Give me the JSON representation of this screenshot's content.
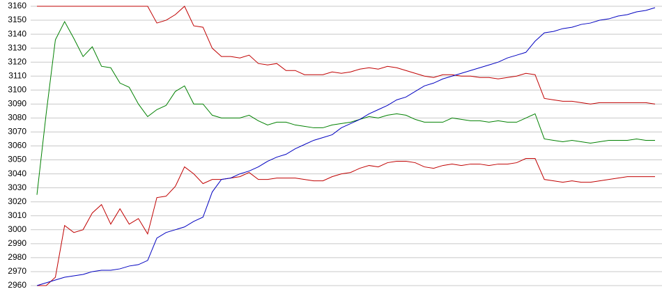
{
  "chart_data": {
    "type": "line",
    "categories": [
      null,
      null,
      null,
      null,
      null,
      null,
      null,
      null,
      null,
      null,
      null,
      null,
      null,
      null,
      null,
      null,
      null,
      null,
      null,
      null,
      null,
      null,
      null,
      null,
      null,
      null,
      null,
      null,
      null,
      null,
      null,
      null,
      null,
      null,
      null,
      null,
      null,
      null,
      null,
      null,
      null,
      null,
      null,
      null,
      null,
      null,
      null,
      null,
      null,
      null,
      null,
      null,
      null,
      null,
      null,
      null,
      null,
      null,
      null,
      null,
      null,
      null,
      null,
      null,
      null,
      null,
      null,
      null
    ],
    "series": [
      {
        "color": "#c00000",
        "values": [
          3160,
          3160,
          3160,
          3160,
          3160,
          3160,
          3160,
          3160,
          3160,
          3160,
          3160,
          3160,
          3160,
          3148,
          3150,
          3154,
          3160,
          3146,
          3145,
          3130,
          3124,
          3124,
          3123,
          3125,
          3119,
          3118,
          3119,
          3114,
          3114,
          3111,
          3111,
          3111,
          3113,
          3112,
          3113,
          3115,
          3116,
          3115,
          3117,
          3116,
          3114,
          3112,
          3110,
          3109,
          3111,
          3111,
          3110,
          3110,
          3109,
          3109,
          3108,
          3109,
          3110,
          3112,
          3111,
          3094,
          3093,
          3092,
          3092,
          3091,
          3090,
          3091,
          3091,
          3091,
          3091,
          3091,
          3091,
          3090
        ]
      },
      {
        "color": "#008000",
        "values": [
          3025,
          3083,
          3136,
          3149,
          3137,
          3124,
          3131,
          3117,
          3116,
          3105,
          3102,
          3090,
          3081,
          3086,
          3089,
          3099,
          3103,
          3090,
          3090,
          3082,
          3080,
          3080,
          3080,
          3082,
          3078,
          3075,
          3077,
          3077,
          3075,
          3074,
          3073,
          3073,
          3075,
          3076,
          3077,
          3079,
          3081,
          3080,
          3082,
          3083,
          3082,
          3079,
          3077,
          3077,
          3077,
          3080,
          3079,
          3078,
          3078,
          3077,
          3078,
          3077,
          3077,
          3080,
          3083,
          3065,
          3064,
          3063,
          3064,
          3063,
          3062,
          3063,
          3064,
          3064,
          3064,
          3065,
          3064,
          3064
        ]
      },
      {
        "color": "#c00000",
        "values": [
          2960,
          2960,
          2966,
          3003,
          2998,
          3000,
          3012,
          3018,
          3004,
          3015,
          3004,
          3008,
          2997,
          3023,
          3024,
          3031,
          3045,
          3040,
          3033,
          3036,
          3036,
          3037,
          3038,
          3041,
          3036,
          3036,
          3037,
          3037,
          3037,
          3036,
          3035,
          3035,
          3038,
          3040,
          3041,
          3044,
          3046,
          3045,
          3048,
          3049,
          3049,
          3048,
          3045,
          3044,
          3046,
          3047,
          3046,
          3047,
          3047,
          3046,
          3047,
          3047,
          3048,
          3051,
          3051,
          3036,
          3035,
          3034,
          3035,
          3034,
          3034,
          3035,
          3036,
          3037,
          3038,
          3038,
          3038,
          3038
        ]
      },
      {
        "color": "#0000c0",
        "values": [
          2960,
          2962,
          2964,
          2966,
          2967,
          2968,
          2970,
          2971,
          2971,
          2972,
          2974,
          2975,
          2978,
          2994,
          2998,
          3000,
          3002,
          3006,
          3009,
          3027,
          3036,
          3037,
          3040,
          3042,
          3045,
          3049,
          3052,
          3054,
          3058,
          3061,
          3064,
          3066,
          3068,
          3073,
          3076,
          3079,
          3083,
          3086,
          3089,
          3093,
          3095,
          3099,
          3103,
          3105,
          3108,
          3110,
          3112,
          3114,
          3116,
          3118,
          3120,
          3123,
          3125,
          3127,
          3135,
          3141,
          3142,
          3144,
          3145,
          3147,
          3148,
          3150,
          3151,
          3153,
          3154,
          3156,
          3157,
          3159
        ]
      }
    ],
    "ylim": [
      2960,
      3160
    ],
    "yticks": [
      2960,
      2970,
      2980,
      2990,
      3000,
      3010,
      3020,
      3030,
      3040,
      3050,
      3060,
      3070,
      3080,
      3090,
      3100,
      3110,
      3120,
      3130,
      3140,
      3150,
      3160
    ],
    "grid": true
  }
}
